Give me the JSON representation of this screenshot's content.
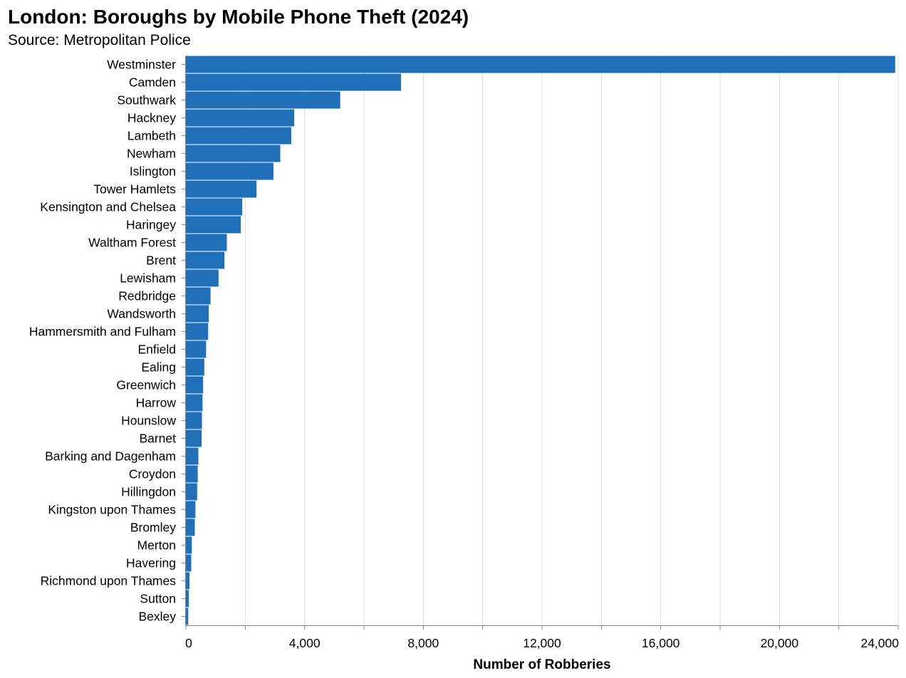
{
  "chart_data": {
    "type": "bar",
    "orientation": "horizontal",
    "title": "London: Boroughs by Mobile Phone Theft (2024)",
    "subtitle": "Source: Metropolitan Police",
    "xlabel": "Number of Robberies",
    "ylabel": "",
    "xlim": [
      0,
      24000
    ],
    "xticks": [
      0,
      4000,
      8000,
      12000,
      16000,
      20000,
      24000
    ],
    "xtick_labels": [
      "0",
      "4,000",
      "8,000",
      "12,000",
      "16,000",
      "20,000",
      "24,000"
    ],
    "grid": true,
    "bar_color": "#1f70b8",
    "categories": [
      "Westminster",
      "Camden",
      "Southwark",
      "Hackney",
      "Lambeth",
      "Newham",
      "Islington",
      "Tower Hamlets",
      "Kensington and Chelsea",
      "Haringey",
      "Waltham Forest",
      "Brent",
      "Lewisham",
      "Redbridge",
      "Wandsworth",
      "Hammersmith and Fulham",
      "Enfield",
      "Ealing",
      "Greenwich",
      "Harrow",
      "Hounslow",
      "Barnet",
      "Barking and Dagenham",
      "Croydon",
      "Hillingdon",
      "Kingston upon Thames",
      "Bromley",
      "Merton",
      "Havering",
      "Richmond upon Thames",
      "Sutton",
      "Bexley"
    ],
    "values": [
      23900,
      7250,
      5200,
      3650,
      3550,
      3180,
      2950,
      2380,
      1900,
      1850,
      1380,
      1300,
      1100,
      830,
      770,
      750,
      680,
      620,
      580,
      560,
      540,
      530,
      420,
      400,
      380,
      320,
      300,
      200,
      180,
      120,
      100,
      80
    ]
  }
}
